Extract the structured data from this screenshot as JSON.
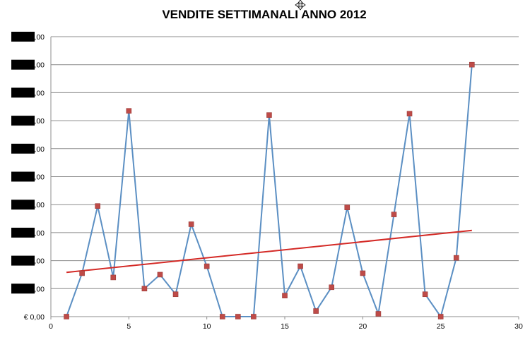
{
  "chart_data": {
    "type": "scatter",
    "title": "VENDITE SETTIMANALI ANNO 2012",
    "xlabel": "",
    "ylabel": "",
    "xlim": [
      0,
      30
    ],
    "ylim": [
      0,
      10
    ],
    "x_ticks": [
      0,
      5,
      10,
      15,
      20,
      25,
      30
    ],
    "y_tick_labels": [
      "€ 0,00",
      "€ ,00",
      "€ ,00",
      "€ ,00",
      "€ ,00",
      "€ ,00",
      "€ ,00",
      "€ ,00",
      "€ ,00",
      "€ ,00",
      "€ ,00"
    ],
    "y_tick_redacted": [
      false,
      true,
      true,
      true,
      true,
      true,
      true,
      true,
      true,
      true,
      true
    ],
    "grid": true,
    "legend": "none",
    "colors": {
      "series": "#5b8fc3",
      "markers": "#be4b48",
      "trendline": "#d42a26",
      "grid": "#8c8c8c"
    },
    "series": [
      {
        "x": [
          1,
          2,
          3,
          4,
          5,
          6,
          7,
          8,
          9,
          10,
          11,
          12,
          13,
          14,
          15,
          16,
          17,
          18,
          19,
          20,
          21,
          22,
          23,
          24,
          25,
          26,
          27
        ],
        "values": [
          0.0,
          1.55,
          3.95,
          1.4,
          7.35,
          1.0,
          1.5,
          0.8,
          3.3,
          1.8,
          0.0,
          0.0,
          0.0,
          7.2,
          0.75,
          1.8,
          0.2,
          1.05,
          3.9,
          1.55,
          0.1,
          3.65,
          7.25,
          0.8,
          0.0,
          2.1,
          9.0
        ]
      }
    ],
    "trendline": {
      "x": [
        1,
        27
      ],
      "y": [
        1.58,
        3.08
      ]
    }
  }
}
